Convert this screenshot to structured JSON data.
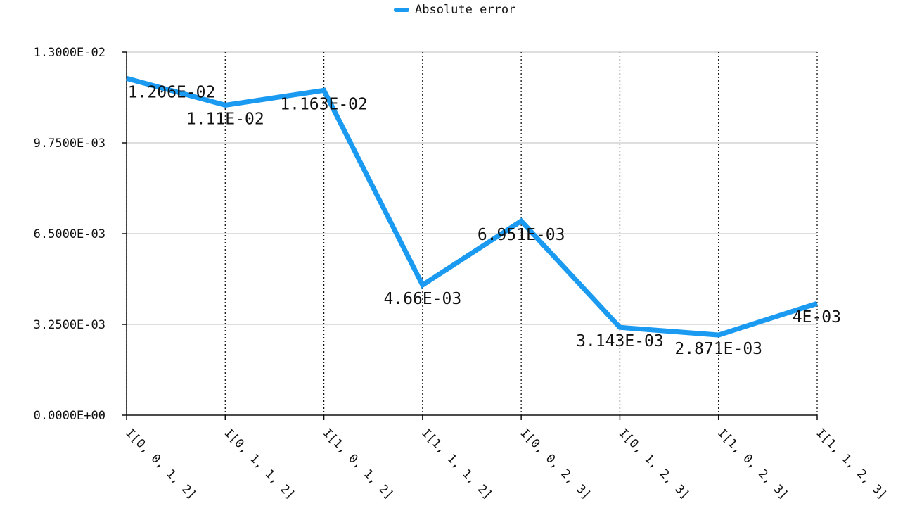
{
  "chart_data": {
    "type": "line",
    "title": "",
    "xlabel": "",
    "ylabel": "",
    "categories": [
      "I[0, 0, 1, 2]",
      "I[0, 1, 1, 2]",
      "I[1, 0, 1, 2]",
      "I[1, 1, 1, 2]",
      "I[0, 0, 2, 3]",
      "I[0, 1, 2, 3]",
      "I[1, 0, 2, 3]",
      "I[1, 1, 2, 3]"
    ],
    "series": [
      {
        "name": "Absolute error",
        "color": "#1a9af0",
        "values": [
          0.01206,
          0.0111,
          0.01163,
          0.00466,
          0.006951,
          0.003143,
          0.002871,
          0.004
        ],
        "labels": [
          "1.206E-02",
          "1.11E-02",
          "1.163E-02",
          "4.66E-03",
          "6.951E-03",
          "3.143E-03",
          "2.871E-03",
          "4E-03"
        ]
      }
    ],
    "ylim": [
      0,
      0.013
    ],
    "y_ticks": [
      0,
      0.00325,
      0.0065,
      0.00975,
      0.013
    ],
    "y_tick_labels": [
      "0.0000E+00",
      "3.2500E-03",
      "6.5000E-03",
      "9.7500E-03",
      "1.3000E-02"
    ],
    "legend_position": "top-center",
    "grid": {
      "horizontal": "solid",
      "vertical": "dotted"
    }
  }
}
